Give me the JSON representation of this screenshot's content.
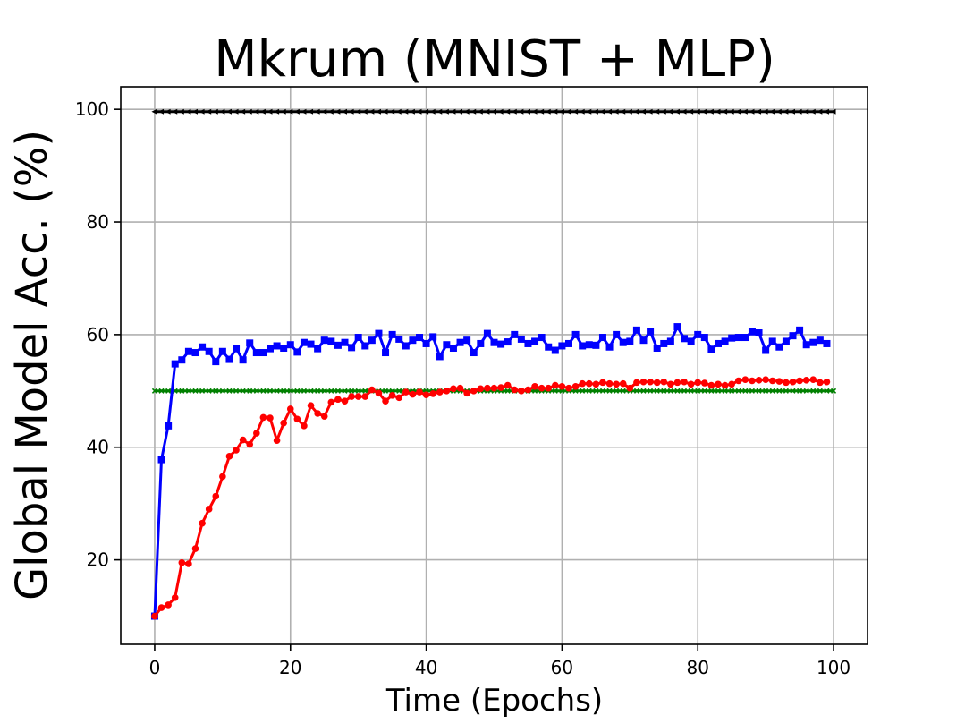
{
  "chart_data": {
    "type": "line",
    "title": "Mkrum (MNIST + MLP)",
    "xlabel": "Time (Epochs)",
    "ylabel": "Global Model Acc. (%)",
    "xlim": [
      -5,
      105
    ],
    "ylim": [
      5,
      104
    ],
    "xticks": [
      0,
      20,
      40,
      60,
      80,
      100
    ],
    "yticks": [
      20,
      40,
      60,
      80,
      100
    ],
    "grid": true,
    "legend": "none",
    "series": [
      {
        "color": "#000000",
        "marker": "triangle-left",
        "x_start": 0,
        "x_end": 100,
        "values": [
          99.6,
          99.6,
          99.6,
          99.6,
          99.6,
          99.6,
          99.6,
          99.6,
          99.6,
          99.6,
          99.6,
          99.6,
          99.6,
          99.6,
          99.6,
          99.6,
          99.6,
          99.6,
          99.6,
          99.6,
          99.6,
          99.6,
          99.6,
          99.6,
          99.6,
          99.6,
          99.6,
          99.6,
          99.6,
          99.6,
          99.6,
          99.6,
          99.6,
          99.6,
          99.6,
          99.6,
          99.6,
          99.6,
          99.6,
          99.6,
          99.6,
          99.6,
          99.6,
          99.6,
          99.6,
          99.6,
          99.6,
          99.6,
          99.6,
          99.6,
          99.6,
          99.6,
          99.6,
          99.6,
          99.6,
          99.6,
          99.6,
          99.6,
          99.6,
          99.6,
          99.6,
          99.6,
          99.6,
          99.6,
          99.6,
          99.6,
          99.6,
          99.6,
          99.6,
          99.6,
          99.6,
          99.6,
          99.6,
          99.6,
          99.6,
          99.6,
          99.6,
          99.6,
          99.6,
          99.6,
          99.6,
          99.6,
          99.6,
          99.6,
          99.6,
          99.6,
          99.6,
          99.6,
          99.6,
          99.6,
          99.6,
          99.6,
          99.6,
          99.6,
          99.6,
          99.6,
          99.6,
          99.6,
          99.6,
          99.6,
          99.6
        ]
      },
      {
        "color": "#008000",
        "marker": "x",
        "x_start": 0,
        "x_end": 100,
        "values": [
          50,
          50,
          50,
          50,
          50,
          50,
          50,
          50,
          50,
          50,
          50,
          50,
          50,
          50,
          50,
          50,
          50,
          50,
          50,
          50,
          50,
          50,
          50,
          50,
          50,
          50,
          50,
          50,
          50,
          50,
          50,
          50,
          50,
          50,
          50,
          50,
          50,
          50,
          50,
          50,
          50,
          50,
          50,
          50,
          50,
          50,
          50,
          50,
          50,
          50,
          50,
          50,
          50,
          50,
          50,
          50,
          50,
          50,
          50,
          50,
          50,
          50,
          50,
          50,
          50,
          50,
          50,
          50,
          50,
          50,
          50,
          50,
          50,
          50,
          50,
          50,
          50,
          50,
          50,
          50,
          50,
          50,
          50,
          50,
          50,
          50,
          50,
          50,
          50,
          50,
          50,
          50,
          50,
          50,
          50,
          50,
          50,
          50,
          50,
          50,
          50
        ]
      },
      {
        "color": "#0000ff",
        "marker": "square",
        "x_start": 0,
        "x_end": 99,
        "values": [
          10.0,
          37.8,
          43.8,
          54.8,
          55.5,
          57.0,
          56.8,
          57.8,
          57.0,
          55.2,
          57.0,
          55.6,
          57.5,
          55.5,
          58.5,
          56.8,
          56.8,
          57.5,
          58.0,
          57.6,
          58.2,
          56.9,
          58.6,
          58.3,
          57.5,
          59.0,
          58.8,
          58.1,
          58.6,
          57.7,
          59.5,
          58.0,
          59.0,
          60.2,
          56.8,
          60.0,
          59.2,
          58.0,
          59.0,
          59.5,
          58.4,
          59.6,
          56.1,
          58.2,
          57.6,
          58.6,
          59.0,
          56.8,
          58.4,
          60.2,
          58.6,
          58.3,
          58.7,
          60.0,
          59.2,
          58.4,
          58.8,
          59.5,
          57.8,
          57.2,
          58.0,
          58.4,
          60.0,
          58.0,
          58.2,
          58.1,
          59.5,
          57.8,
          60.0,
          58.6,
          58.8,
          60.8,
          59.0,
          60.5,
          57.6,
          58.4,
          58.8,
          61.4,
          59.3,
          58.8,
          60.0,
          59.5,
          57.4,
          58.4,
          58.8,
          59.4,
          59.5,
          59.5,
          60.5,
          60.3,
          57.2,
          58.8,
          57.8,
          58.8,
          59.8,
          60.8,
          58.2,
          58.6,
          59.0,
          58.4
        ]
      },
      {
        "color": "#ff0000",
        "marker": "circle",
        "x_start": 0,
        "x_end": 99,
        "values": [
          10.0,
          11.5,
          12.0,
          13.3,
          19.5,
          19.3,
          22.0,
          26.5,
          29.0,
          31.3,
          34.8,
          38.4,
          39.5,
          41.3,
          40.5,
          42.5,
          45.3,
          45.2,
          41.2,
          44.3,
          46.8,
          45.0,
          43.8,
          47.4,
          46.0,
          45.5,
          48.0,
          48.5,
          48.2,
          49.0,
          49.0,
          49.0,
          50.2,
          49.6,
          48.2,
          49.2,
          48.8,
          49.8,
          49.4,
          49.8,
          49.3,
          49.5,
          49.8,
          50.0,
          50.4,
          50.5,
          49.6,
          50.0,
          50.4,
          50.5,
          50.5,
          50.6,
          51.0,
          50.2,
          50.0,
          50.2,
          50.8,
          50.5,
          50.5,
          51.0,
          50.8,
          50.5,
          50.8,
          51.3,
          51.3,
          51.2,
          51.5,
          51.3,
          51.2,
          51.3,
          50.5,
          51.5,
          51.6,
          51.6,
          51.5,
          51.6,
          51.2,
          51.5,
          51.6,
          51.2,
          51.5,
          51.4,
          51.0,
          51.2,
          51.0,
          51.2,
          51.8,
          52.0,
          51.8,
          51.9,
          52.0,
          51.8,
          51.7,
          51.5,
          51.6,
          51.8,
          51.9,
          52.0,
          51.5,
          51.6
        ]
      }
    ]
  }
}
